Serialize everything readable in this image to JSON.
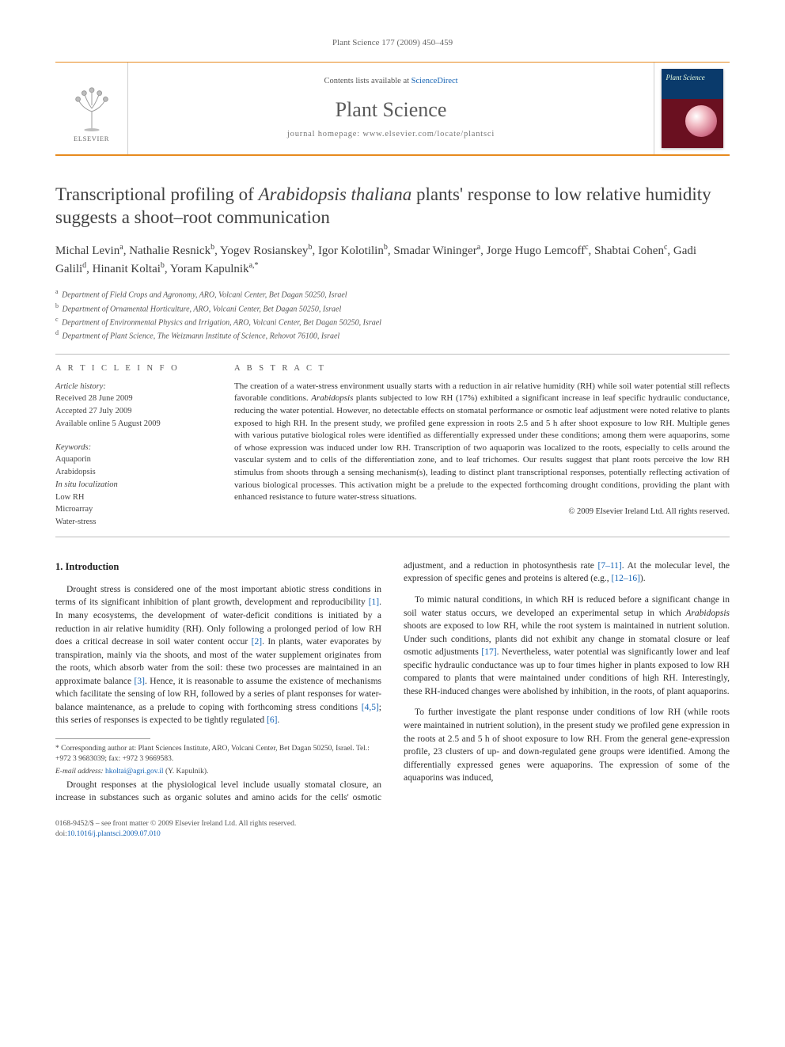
{
  "running_head": "Plant Science 177 (2009) 450–459",
  "masthead": {
    "contents_prefix": "Contents lists available at ",
    "contents_link": "ScienceDirect",
    "journal_name": "Plant Science",
    "homepage_prefix": "journal homepage: ",
    "homepage": "www.elsevier.com/locate/plantsci",
    "publisher_label": "ELSEVIER",
    "cover_title": "Plant Science"
  },
  "article": {
    "title_pre": "Transcriptional profiling of ",
    "title_em": "Arabidopsis thaliana",
    "title_post": " plants' response to low relative humidity suggests a shoot–root communication",
    "authors_html": "Michal Levin<sup>a</sup>, Nathalie Resnick<sup>b</sup>, Yogev Rosianskey<sup>b</sup>, Igor Kolotilin<sup>b</sup>, Smadar Wininger<sup>a</sup>, Jorge Hugo Lemcoff<sup>c</sup>, Shabtai Cohen<sup>c</sup>, Gadi Galili<sup>d</sup>, Hinanit Koltai<sup>b</sup>, Yoram Kapulnik<sup>a,*</sup>",
    "affiliations": [
      {
        "sup": "a",
        "text": "Department of Field Crops and Agronomy, ARO, Volcani Center, Bet Dagan 50250, Israel"
      },
      {
        "sup": "b",
        "text": "Department of Ornamental Horticulture, ARO, Volcani Center, Bet Dagan 50250, Israel"
      },
      {
        "sup": "c",
        "text": "Department of Environmental Physics and Irrigation, ARO, Volcani Center, Bet Dagan 50250, Israel"
      },
      {
        "sup": "d",
        "text": "Department of Plant Science, The Weizmann Institute of Science, Rehovot 76100, Israel"
      }
    ]
  },
  "info": {
    "label": "A R T I C L E   I N F O",
    "history_label": "Article history:",
    "history": [
      "Received 28 June 2009",
      "Accepted 27 July 2009",
      "Available online 5 August 2009"
    ],
    "keywords_label": "Keywords:",
    "keywords": [
      "Aquaporin",
      "Arabidopsis",
      "In situ localization",
      "Low RH",
      "Microarray",
      "Water-stress"
    ],
    "keyword_italic_index": 2
  },
  "abstract": {
    "label": "A B S T R A C T",
    "text_pre": "The creation of a water-stress environment usually starts with a reduction in air relative humidity (RH) while soil water potential still reflects favorable conditions. ",
    "text_em": "Arabidopsis",
    "text_post": " plants subjected to low RH (17%) exhibited a significant increase in leaf specific hydraulic conductance, reducing the water potential. However, no detectable effects on stomatal performance or osmotic leaf adjustment were noted relative to plants exposed to high RH. In the present study, we profiled gene expression in roots 2.5 and 5 h after shoot exposure to low RH. Multiple genes with various putative biological roles were identified as differentially expressed under these conditions; among them were aquaporins, some of whose expression was induced under low RH. Transcription of two aquaporin was localized to the roots, especially to cells around the vascular system and to cells of the differentiation zone, and to leaf trichomes. Our results suggest that plant roots perceive the low RH stimulus from shoots through a sensing mechanism(s), leading to distinct plant transcriptional responses, potentially reflecting activation of various biological processes. This activation might be a prelude to the expected forthcoming drought conditions, providing the plant with enhanced resistance to future water-stress situations.",
    "copyright": "© 2009 Elsevier Ireland Ltd. All rights reserved."
  },
  "body": {
    "heading": "1. Introduction",
    "p1": {
      "pre": "Drought stress is considered one of the most important abiotic stress conditions in terms of its significant inhibition of plant growth, development and reproducibility ",
      "ref1": "[1]",
      "mid1": ". In many ecosystems, the development of water-deficit conditions is initiated by a reduction in air relative humidity (RH). Only following a prolonged period of low RH does a critical decrease in soil water content occur ",
      "ref2": "[2]",
      "mid2": ". In plants, water evaporates by transpiration, mainly via the shoots, and most of the water supplement originates from the roots, which absorb water from the soil: these two processes are maintained in an approximate balance ",
      "ref3": "[3]",
      "mid3": ". Hence, it is reasonable to assume the existence of mechanisms which facilitate the sensing of low RH, followed by a series of plant responses for water-balance maintenance, as a prelude to coping with forthcoming stress conditions ",
      "ref4": "[4,5]",
      "mid4": "; this series of responses is expected to be tightly regulated ",
      "ref5": "[6]",
      "post": "."
    },
    "p2": {
      "pre": "Drought responses at the physiological level include usually stomatal closure, an increase in substances such as organic solutes and amino acids for the cells' osmotic adjustment, and a reduction in photosynthesis rate ",
      "ref1": "[7–11]",
      "mid1": ". At the molecular level, the expression of specific genes and proteins is altered (e.g., ",
      "ref2": "[12–16]",
      "post": ")."
    },
    "p3": {
      "pre": "To mimic natural conditions, in which RH is reduced before a significant change in soil water status occurs, we developed an experimental setup in which ",
      "em": "Arabidopsis",
      "mid": " shoots are exposed to low RH, while the root system is maintained in nutrient solution. Under such conditions, plants did not exhibit any change in stomatal closure or leaf osmotic adjustments ",
      "ref": "[17]",
      "post": ". Nevertheless, water potential was significantly lower and leaf specific hydraulic conductance was up to four times higher in plants exposed to low RH compared to plants that were maintained under conditions of high RH. Interestingly, these RH-induced changes were abolished by inhibition, in the roots, of plant aquaporins."
    },
    "p4": "To further investigate the plant response under conditions of low RH (while roots were maintained in nutrient solution), in the present study we profiled gene expression in the roots at 2.5 and 5 h of shoot exposure to low RH. From the general gene-expression profile, 23 clusters of up- and down-regulated gene groups were identified. Among the differentially expressed genes were aquaporins. The expression of some of the aquaporins was induced,"
  },
  "footnote": {
    "corr": "* Corresponding author at: Plant Sciences Institute, ARO, Volcani Center, Bet Dagan 50250, Israel. Tel.: +972 3 9683039; fax: +972 3 9669583.",
    "email_label": "E-mail address: ",
    "email": "hkoltai@agri.gov.il",
    "email_who": " (Y. Kapulnik)."
  },
  "footer": {
    "line1": "0168-9452/$ – see front matter © 2009 Elsevier Ireland Ltd. All rights reserved.",
    "doi_label": "doi:",
    "doi": "10.1016/j.plantsci.2009.07.010"
  },
  "colors": {
    "accent": "#e78a1e",
    "link": "#1664b5",
    "text": "#333333",
    "muted": "#666666"
  },
  "typography": {
    "body_pt": 11.5,
    "title_pt": 23,
    "abstract_pt": 11,
    "small_pt": 10.5
  }
}
